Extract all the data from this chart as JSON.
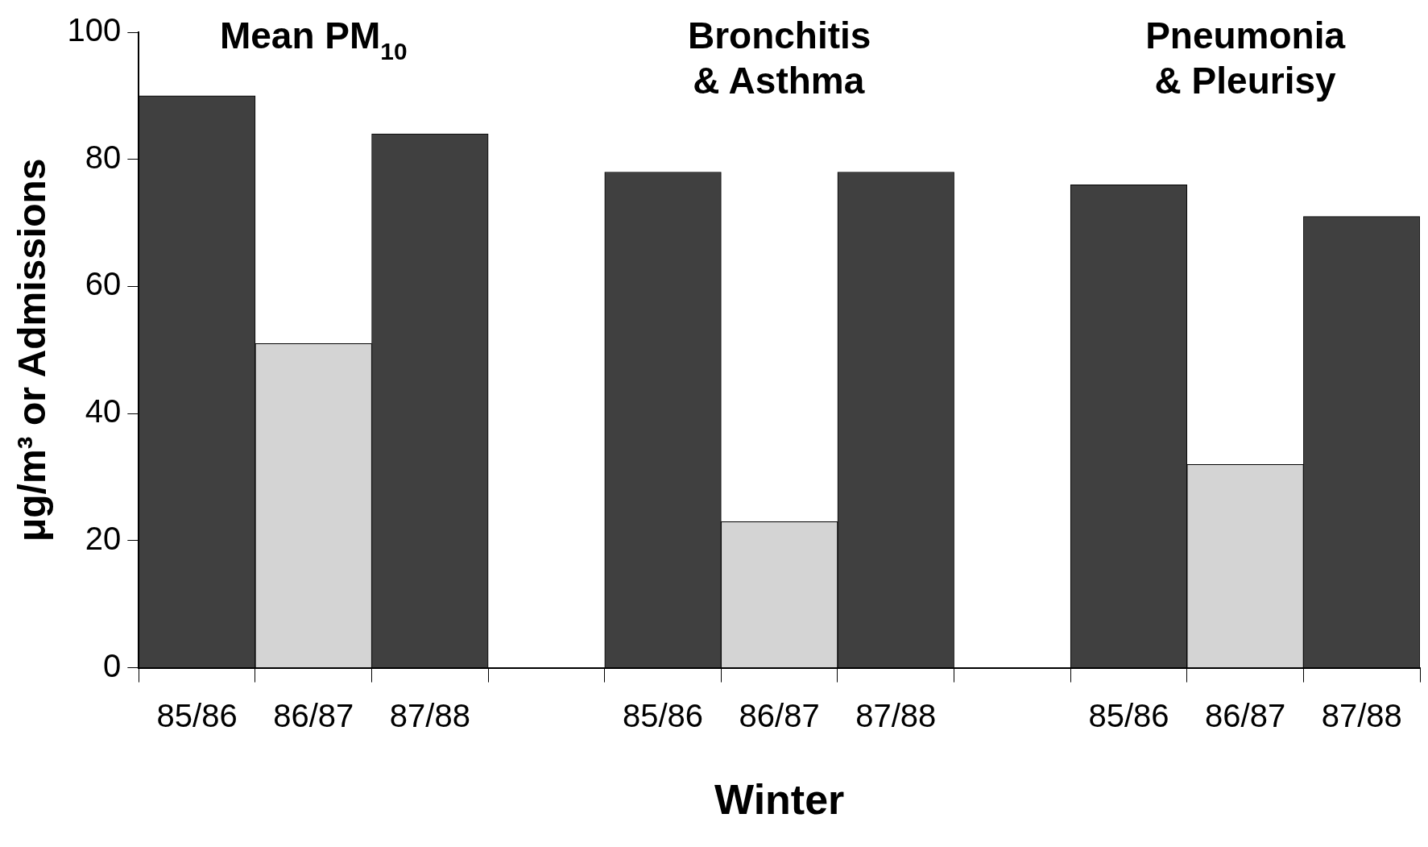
{
  "chart_data": {
    "type": "bar",
    "xlabel": "Winter",
    "ylabel": "μg/m³ or Admissions",
    "categories": [
      "85/86",
      "86/87",
      "87/88",
      null,
      "85/86",
      "86/87",
      "87/88",
      null,
      "85/86",
      "86/87",
      "87/88"
    ],
    "values": [
      90,
      51,
      84,
      null,
      78,
      23,
      78,
      null,
      76,
      32,
      71
    ],
    "colors": [
      "#404040",
      "#d4d4d4",
      "#404040",
      null,
      "#404040",
      "#d4d4d4",
      "#404040",
      null,
      "#404040",
      "#d4d4d4",
      "#404040"
    ],
    "ylim": [
      0,
      100
    ],
    "yticks": [
      0,
      20,
      40,
      60,
      80,
      100
    ],
    "grid": false,
    "legend": false,
    "annotations": [
      "Mean PM$_{10}$",
      "Bronchitis\n& Asthma",
      "Pneumonia\n& Pleurisy"
    ]
  }
}
